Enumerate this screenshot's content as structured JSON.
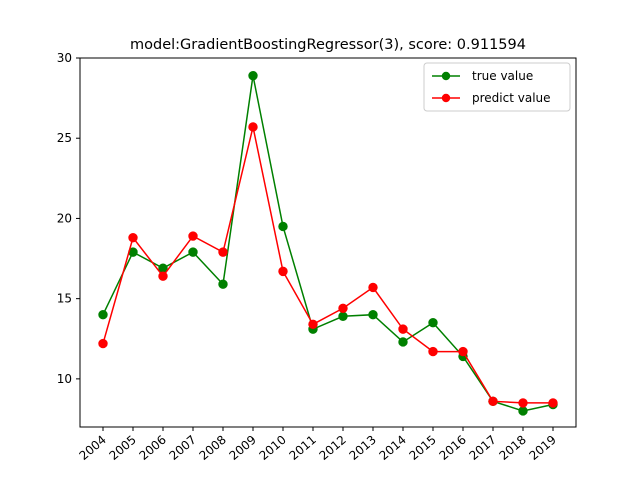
{
  "chart_data": {
    "type": "line",
    "title": "model:GradientBoostingRegressor(3), score: 0.911594",
    "xlabel": "",
    "ylabel": "",
    "categories": [
      "2004",
      "2005",
      "2006",
      "2007",
      "2008",
      "2009",
      "2010",
      "2011",
      "2012",
      "2013",
      "2014",
      "2015",
      "2016",
      "2017",
      "2018",
      "2019"
    ],
    "ylim": [
      7,
      30
    ],
    "yticks": [
      "10",
      "15",
      "20",
      "25",
      "30"
    ],
    "grid": false,
    "legend_position": "top-right",
    "series": [
      {
        "name": "true value",
        "color": "#008000",
        "values": [
          14.0,
          17.9,
          16.9,
          17.9,
          15.9,
          28.9,
          19.5,
          13.1,
          13.9,
          14.0,
          12.3,
          13.5,
          11.4,
          8.6,
          8.0,
          8.4
        ]
      },
      {
        "name": "predict value",
        "color": "#ff0000",
        "values": [
          12.2,
          18.8,
          16.4,
          18.9,
          17.9,
          25.7,
          16.7,
          13.4,
          14.4,
          15.7,
          13.1,
          11.7,
          11.7,
          8.6,
          8.5,
          8.5
        ]
      }
    ]
  }
}
